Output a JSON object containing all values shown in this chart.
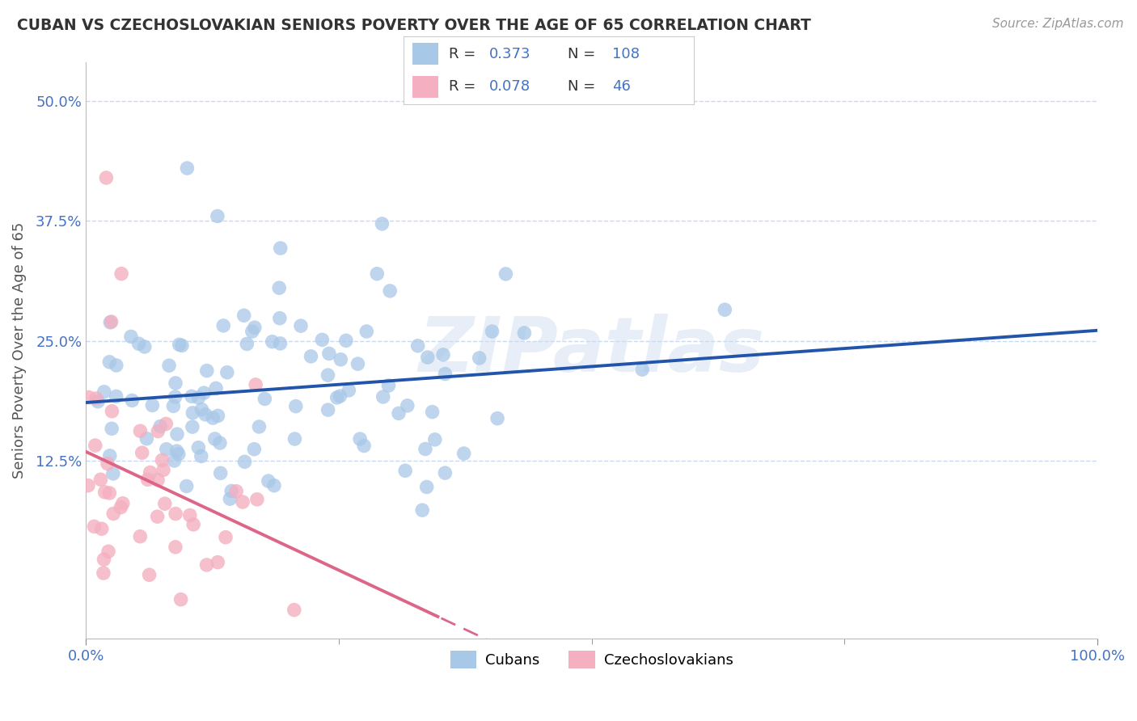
{
  "title": "CUBAN VS CZECHOSLOVAKIAN SENIORS POVERTY OVER THE AGE OF 65 CORRELATION CHART",
  "source": "Source: ZipAtlas.com",
  "ylabel": "Seniors Poverty Over the Age of 65",
  "xlabel": "",
  "xlim": [
    0.0,
    1.0
  ],
  "ylim": [
    -0.06,
    0.54
  ],
  "yticks": [
    0.125,
    0.25,
    0.375,
    0.5
  ],
  "ytick_labels": [
    "12.5%",
    "25.0%",
    "37.5%",
    "50.0%"
  ],
  "xticks": [
    0.0,
    1.0
  ],
  "xtick_labels": [
    "0.0%",
    "100.0%"
  ],
  "cubans_R": 0.373,
  "cubans_N": 108,
  "czech_R": 0.078,
  "czech_N": 46,
  "cubans_color": "#a8c8e8",
  "czech_color": "#f4afc0",
  "cubans_line_color": "#2255aa",
  "czech_line_color": "#dd6688",
  "background_color": "#ffffff",
  "grid_color": "#c8d8ee",
  "watermark_color": "#d8e4f0",
  "title_color": "#333333",
  "tick_color": "#4472c4",
  "ylabel_color": "#555555",
  "legend_text_color": "#333333",
  "legend_value_color": "#4472c4"
}
